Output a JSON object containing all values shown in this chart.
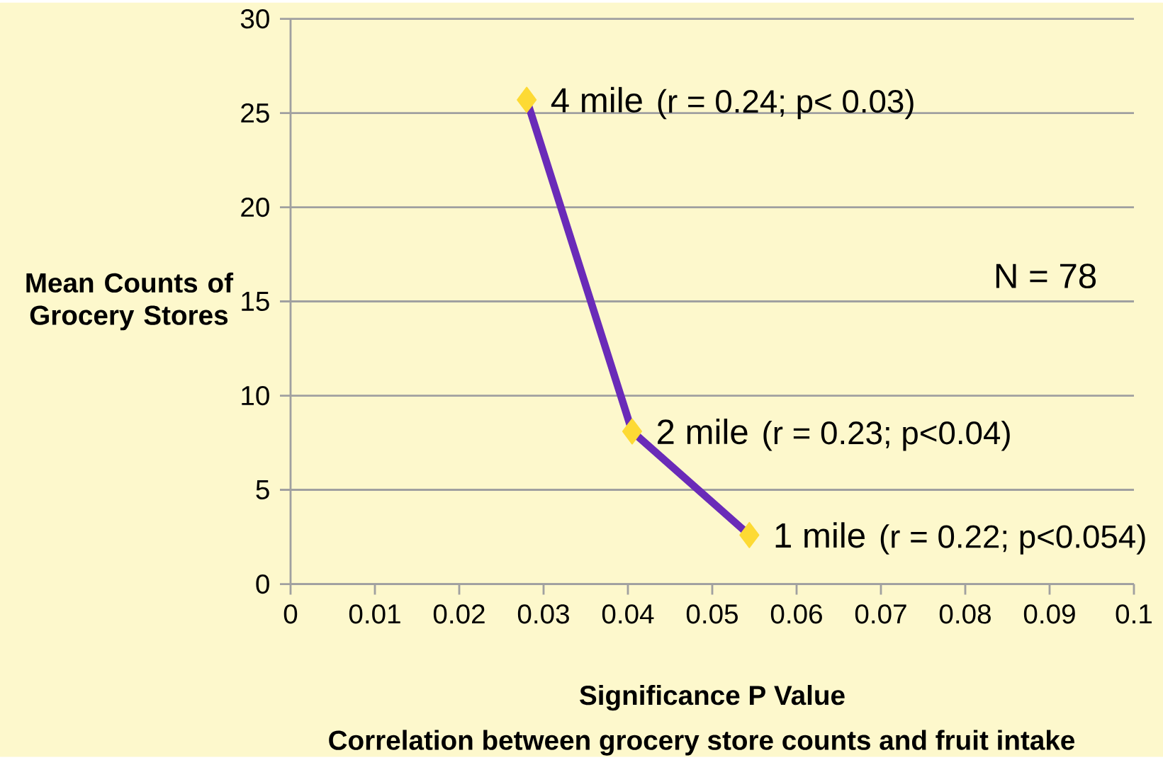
{
  "chart_data": {
    "type": "line",
    "xlabel": "Significance P Value",
    "title": "Correlation between grocery store counts and fruit intake",
    "ylabel": "Mean Counts of Grocery Stores",
    "x": [
      0.028,
      0.0405,
      0.0544
    ],
    "series": [
      {
        "color": "#6a2bb8",
        "values": [
          25.7,
          8.1,
          2.6
        ]
      }
    ],
    "marker": "diamond",
    "line_style": "solid",
    "grid": "y",
    "xlim": [
      0,
      0.1
    ],
    "xticks": [
      0,
      0.01,
      0.02,
      0.03,
      0.04,
      0.05,
      0.06,
      0.07,
      0.08,
      0.09,
      0.1
    ],
    "ylim": [
      0,
      30
    ],
    "yticks": [
      0,
      5,
      10,
      15,
      20,
      25,
      30
    ],
    "annotations": [
      {
        "text": "4 mile",
        "x": 0.028,
        "y": 25.7
      },
      "(r = 0.24; p< 0.03)",
      {
        "text": "2 mile",
        "x": 0.0405,
        "y": 8.1
      },
      "(r = 0.23; p<0.04)",
      {
        "text": "1 mile",
        "x": 0.0544,
        "y": 2.6
      },
      "(r = 0.22; p<0.054)",
      "N = 78"
    ]
  }
}
